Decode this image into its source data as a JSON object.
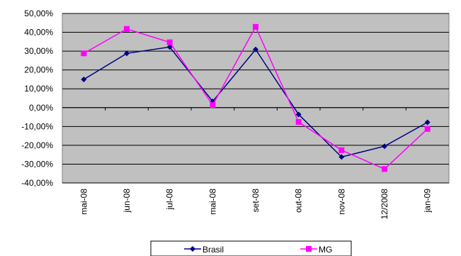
{
  "chart_data": {
    "type": "line",
    "categories": [
      "mai-08",
      "jun-08",
      "jul-08",
      "mai-08",
      "set-08",
      "out-08",
      "nov-08",
      "12/2008",
      "jan-09"
    ],
    "series": [
      {
        "name": "Brasil",
        "values": [
          15.0,
          28.8,
          32.2,
          3.3,
          30.9,
          -3.6,
          -26.2,
          -20.5,
          -7.8
        ],
        "color": "#000080",
        "marker": "diamond"
      },
      {
        "name": "MG",
        "values": [
          28.8,
          41.8,
          34.7,
          1.4,
          42.9,
          -7.6,
          -22.6,
          -32.6,
          -11.3
        ],
        "color": "#FF00FF",
        "marker": "square"
      }
    ],
    "ylim": [
      -40,
      50
    ],
    "yticks": [
      "50,00%",
      "40,00%",
      "30,00%",
      "20,00%",
      "10,00%",
      "0,00%",
      "-10,00%",
      "-20,00%",
      "-30,00%",
      "-40,00%"
    ],
    "ytick_values": [
      50,
      40,
      30,
      20,
      10,
      0,
      -10,
      -20,
      -30,
      -40
    ],
    "grid": true,
    "plot_background": "#C0C0C0",
    "legend_position": "bottom"
  }
}
